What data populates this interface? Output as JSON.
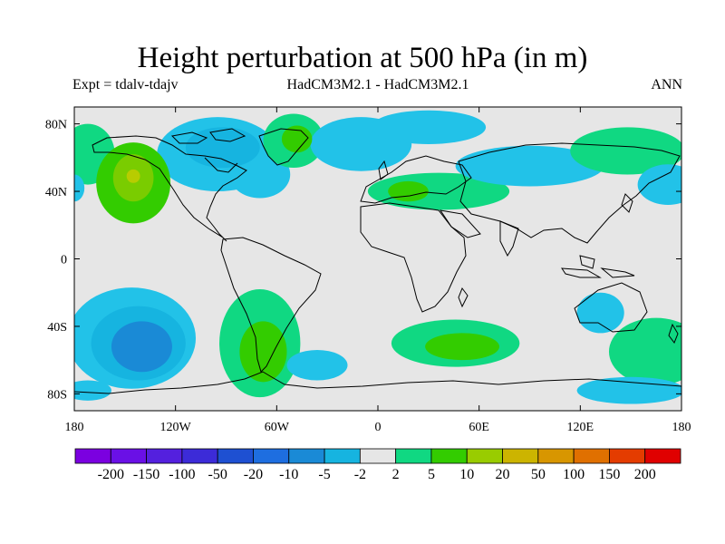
{
  "title": "Height perturbation at 500 hPa (in m)",
  "subtitle_left": "Expt = tdalv-tdajv",
  "subtitle_center": "HadCM3M2.1 - HadCM3M2.1",
  "subtitle_right": "ANN",
  "map": {
    "projection": "cylindrical-equidistant",
    "lon_range": [
      -180,
      180
    ],
    "lat_range": [
      -90,
      90
    ],
    "background_color": "#e6e6e6",
    "lat_ticks": [
      {
        "value": 80,
        "label": "80N"
      },
      {
        "value": 40,
        "label": "40N"
      },
      {
        "value": 0,
        "label": "0"
      },
      {
        "value": -40,
        "label": "40S"
      },
      {
        "value": -80,
        "label": "80S"
      }
    ],
    "lon_ticks": [
      {
        "value": -180,
        "label": "180"
      },
      {
        "value": -120,
        "label": "120W"
      },
      {
        "value": -60,
        "label": "60W"
      },
      {
        "value": 0,
        "label": "0"
      },
      {
        "value": 60,
        "label": "60E"
      },
      {
        "value": 120,
        "label": "120E"
      },
      {
        "value": 180,
        "label": "180"
      }
    ],
    "anomalies": [
      {
        "lon": -145,
        "lat": 45,
        "rx": 22,
        "ry": 24,
        "level": 5
      },
      {
        "lon": -145,
        "lat": 48,
        "rx": 12,
        "ry": 14,
        "level": 10
      },
      {
        "lon": -145,
        "lat": 49,
        "rx": 4,
        "ry": 4,
        "level": 20
      },
      {
        "lon": -95,
        "lat": 62,
        "rx": 36,
        "ry": 22,
        "level": -2
      },
      {
        "lon": -92,
        "lat": 66,
        "rx": 22,
        "ry": 12,
        "level": -5
      },
      {
        "lon": -70,
        "lat": 50,
        "rx": 18,
        "ry": 14,
        "level": -2
      },
      {
        "lon": -172,
        "lat": 62,
        "rx": 16,
        "ry": 18,
        "level": 2
      },
      {
        "lon": -180,
        "lat": 42,
        "rx": 6,
        "ry": 8,
        "level": -2
      },
      {
        "lon": -50,
        "lat": 70,
        "rx": 18,
        "ry": 16,
        "level": 2
      },
      {
        "lon": -48,
        "lat": 71,
        "rx": 9,
        "ry": 8,
        "level": 5
      },
      {
        "lon": -10,
        "lat": 68,
        "rx": 30,
        "ry": 16,
        "level": -2
      },
      {
        "lon": 30,
        "lat": 78,
        "rx": 34,
        "ry": 10,
        "level": -2
      },
      {
        "lon": 36,
        "lat": 40,
        "rx": 42,
        "ry": 11,
        "level": 2
      },
      {
        "lon": 18,
        "lat": 40,
        "rx": 12,
        "ry": 6,
        "level": 5
      },
      {
        "lon": 90,
        "lat": 55,
        "rx": 44,
        "ry": 12,
        "level": -2
      },
      {
        "lon": 148,
        "lat": 64,
        "rx": 34,
        "ry": 14,
        "level": 2
      },
      {
        "lon": 172,
        "lat": 44,
        "rx": 18,
        "ry": 12,
        "level": -2
      },
      {
        "lon": -146,
        "lat": -47,
        "rx": 38,
        "ry": 30,
        "level": -2
      },
      {
        "lon": -142,
        "lat": -50,
        "rx": 28,
        "ry": 22,
        "level": -5
      },
      {
        "lon": -140,
        "lat": -52,
        "rx": 18,
        "ry": 15,
        "level": -10
      },
      {
        "lon": -70,
        "lat": -50,
        "rx": 24,
        "ry": 32,
        "level": 2
      },
      {
        "lon": -68,
        "lat": -55,
        "rx": 14,
        "ry": 18,
        "level": 5
      },
      {
        "lon": -36,
        "lat": -63,
        "rx": 18,
        "ry": 9,
        "level": -2
      },
      {
        "lon": 46,
        "lat": -50,
        "rx": 38,
        "ry": 14,
        "level": 2
      },
      {
        "lon": 50,
        "lat": -52,
        "rx": 22,
        "ry": 8,
        "level": 5
      },
      {
        "lon": 165,
        "lat": -55,
        "rx": 28,
        "ry": 20,
        "level": 2
      },
      {
        "lon": 132,
        "lat": -32,
        "rx": 14,
        "ry": 12,
        "level": -2
      },
      {
        "lon": 150,
        "lat": -78,
        "rx": 32,
        "ry": 8,
        "level": -2
      },
      {
        "lon": -172,
        "lat": -78,
        "rx": 14,
        "ry": 6,
        "level": -2
      }
    ]
  },
  "colorbar": {
    "colors": [
      "#7b00e0",
      "#6a10e6",
      "#5420de",
      "#3c2bd8",
      "#1e50d2",
      "#1e6ee0",
      "#1a8ad6",
      "#16b4e0",
      "#e6e6e6",
      "#10d882",
      "#33cc00",
      "#99cc00",
      "#ccb400",
      "#d89600",
      "#e07000",
      "#e43c00",
      "#e00000"
    ],
    "labels": [
      "-200",
      "-150",
      "-100",
      "-50",
      "-20",
      "-10",
      "-5",
      "-2",
      "2",
      "5",
      "10",
      "20",
      "50",
      "100",
      "150",
      "200"
    ]
  },
  "level_colors": {
    "-10": "#1a8ad6",
    "-5": "#16b4e0",
    "-2": "#22c2e8",
    "2": "#10d882",
    "5": "#33cc00",
    "10": "#7acc00",
    "20": "#b8cc00"
  }
}
